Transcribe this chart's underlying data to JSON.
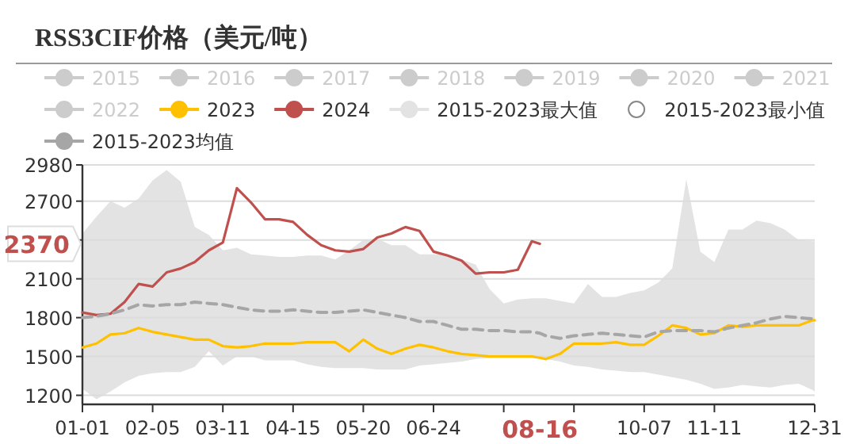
{
  "chart_data": {
    "type": "line",
    "title": "RSS3CIF价格（美元/吨）",
    "x": [
      "--01-01",
      "--01-08",
      "--01-15",
      "--01-22",
      "--01-29",
      "--02-05",
      "--02-12",
      "--02-19",
      "--02-26",
      "--03-04",
      "--03-11",
      "--03-18",
      "--03-25",
      "--04-01",
      "--04-08",
      "--04-15",
      "--04-22",
      "--04-29",
      "--05-06",
      "--05-13",
      "--05-20",
      "--05-27",
      "--06-03",
      "--06-10",
      "--06-17",
      "--06-24",
      "--07-01",
      "--07-08",
      "--07-15",
      "--07-22",
      "--07-29",
      "--08-05",
      "--08-12",
      "--08-16",
      "--08-19",
      "--08-26",
      "--09-02",
      "--09-09",
      "--09-16",
      "--09-23",
      "--09-30",
      "--10-07",
      "--10-14",
      "--10-21",
      "--10-28",
      "--11-04",
      "--11-11",
      "--11-18",
      "--11-25",
      "--12-02",
      "--12-09",
      "--12-16",
      "--12-23",
      "--12-30",
      "--12-31"
    ],
    "series": [
      {
        "name": "2015",
        "color": "#cccccc",
        "values": [
          null,
          null,
          null,
          null,
          null,
          null,
          null,
          null,
          null,
          null,
          null,
          null,
          null,
          null,
          null,
          null,
          null,
          null,
          null,
          null,
          null,
          null,
          null,
          null,
          null,
          null,
          null,
          null,
          null,
          null,
          null,
          null,
          null,
          null,
          null,
          null,
          null,
          null,
          null,
          null,
          null,
          null,
          null,
          null,
          null,
          null,
          null,
          null,
          null,
          null,
          null,
          null,
          null,
          null,
          null
        ]
      },
      {
        "name": "2016",
        "color": "#cccccc",
        "values": [
          null,
          null,
          null,
          null,
          null,
          null,
          null,
          null,
          null,
          null,
          null,
          null,
          null,
          null,
          null,
          null,
          null,
          null,
          null,
          null,
          null,
          null,
          null,
          null,
          null,
          null,
          null,
          null,
          null,
          null,
          null,
          null,
          null,
          null,
          null,
          null,
          null,
          null,
          null,
          null,
          null,
          null,
          null,
          null,
          null,
          null,
          null,
          null,
          null,
          null,
          null,
          null,
          null,
          null,
          null
        ]
      },
      {
        "name": "2017",
        "color": "#cccccc",
        "values": [
          null,
          null,
          null,
          null,
          null,
          null,
          null,
          null,
          null,
          null,
          null,
          null,
          null,
          null,
          null,
          null,
          null,
          null,
          null,
          null,
          null,
          null,
          null,
          null,
          null,
          null,
          null,
          null,
          null,
          null,
          null,
          null,
          null,
          null,
          null,
          null,
          null,
          null,
          null,
          null,
          null,
          null,
          null,
          null,
          null,
          null,
          null,
          null,
          null,
          null,
          null,
          null,
          null,
          null,
          null
        ]
      },
      {
        "name": "2018",
        "color": "#cccccc",
        "values": [
          null,
          null,
          null,
          null,
          null,
          null,
          null,
          null,
          null,
          null,
          null,
          null,
          null,
          null,
          null,
          null,
          null,
          null,
          null,
          null,
          null,
          null,
          null,
          null,
          null,
          null,
          null,
          null,
          null,
          null,
          null,
          null,
          null,
          null,
          null,
          null,
          null,
          null,
          null,
          null,
          null,
          null,
          null,
          null,
          null,
          null,
          null,
          null,
          null,
          null,
          null,
          null,
          null,
          null,
          null
        ]
      },
      {
        "name": "2019",
        "color": "#cccccc",
        "values": [
          null,
          null,
          null,
          null,
          null,
          null,
          null,
          null,
          null,
          null,
          null,
          null,
          null,
          null,
          null,
          null,
          null,
          null,
          null,
          null,
          null,
          null,
          null,
          null,
          null,
          null,
          null,
          null,
          null,
          null,
          null,
          null,
          null,
          null,
          null,
          null,
          null,
          null,
          null,
          null,
          null,
          null,
          null,
          null,
          null,
          null,
          null,
          null,
          null,
          null,
          null,
          null,
          null,
          null,
          null
        ]
      },
      {
        "name": "2020",
        "color": "#cccccc",
        "values": [
          null,
          null,
          null,
          null,
          null,
          null,
          null,
          null,
          null,
          null,
          null,
          null,
          null,
          null,
          null,
          null,
          null,
          null,
          null,
          null,
          null,
          null,
          null,
          null,
          null,
          null,
          null,
          null,
          null,
          null,
          null,
          null,
          null,
          null,
          null,
          null,
          null,
          null,
          null,
          null,
          null,
          null,
          null,
          null,
          null,
          null,
          null,
          null,
          null,
          null,
          null,
          null,
          null,
          null,
          null
        ]
      },
      {
        "name": "2021",
        "color": "#cccccc",
        "values": [
          null,
          null,
          null,
          null,
          null,
          null,
          null,
          null,
          null,
          null,
          null,
          null,
          null,
          null,
          null,
          null,
          null,
          null,
          null,
          null,
          null,
          null,
          null,
          null,
          null,
          null,
          null,
          null,
          null,
          null,
          null,
          null,
          null,
          null,
          null,
          null,
          null,
          null,
          null,
          null,
          null,
          null,
          null,
          null,
          null,
          null,
          null,
          null,
          null,
          null,
          null,
          null,
          null,
          null,
          null
        ]
      },
      {
        "name": "2022",
        "color": "#cccccc",
        "values": [
          null,
          null,
          null,
          null,
          null,
          null,
          null,
          null,
          null,
          null,
          null,
          null,
          null,
          null,
          null,
          null,
          null,
          null,
          null,
          null,
          null,
          null,
          null,
          null,
          null,
          null,
          null,
          null,
          null,
          null,
          null,
          null,
          null,
          null,
          null,
          null,
          null,
          null,
          null,
          null,
          null,
          null,
          null,
          null,
          null,
          null,
          null,
          null,
          null,
          null,
          null,
          null,
          null,
          null,
          null
        ]
      },
      {
        "name": "2023",
        "color": "#ffc000",
        "values": [
          1570,
          1600,
          1670,
          1680,
          1720,
          1690,
          1670,
          1650,
          1630,
          1630,
          1580,
          1570,
          1580,
          1600,
          1600,
          1600,
          1610,
          1610,
          1610,
          1540,
          1630,
          1560,
          1520,
          1560,
          1590,
          1570,
          1540,
          1520,
          1510,
          1500,
          1500,
          1500,
          1500,
          1490,
          1480,
          1520,
          1600,
          1600,
          1600,
          1610,
          1590,
          1590,
          1660,
          1740,
          1720,
          1670,
          1680,
          1740,
          1730,
          1740,
          1740,
          1740,
          1740,
          1780,
          1780
        ]
      },
      {
        "name": "2024",
        "color": "#c0504d",
        "values": [
          1840,
          1820,
          1830,
          1920,
          2060,
          2040,
          2150,
          2180,
          2230,
          2320,
          2380,
          2800,
          2690,
          2560,
          2560,
          2540,
          2440,
          2360,
          2320,
          2310,
          2330,
          2420,
          2450,
          2500,
          2470,
          2310,
          2280,
          2240,
          2140,
          2150,
          2150,
          2170,
          2390,
          2370,
          null,
          null,
          null,
          null,
          null,
          null,
          null,
          null,
          null,
          null,
          null,
          null,
          null,
          null,
          null,
          null,
          null,
          null,
          null,
          null,
          null
        ]
      },
      {
        "name": "2015-2023最大值",
        "type": "area",
        "color": "#e3e3e3",
        "values": [
          2450,
          2580,
          2700,
          2650,
          2720,
          2860,
          2940,
          2850,
          2500,
          2440,
          2320,
          2340,
          2290,
          2280,
          2270,
          2270,
          2280,
          2280,
          2250,
          2320,
          2400,
          2410,
          2360,
          2360,
          2290,
          2290,
          2290,
          2250,
          2210,
          2020,
          1910,
          1940,
          1950,
          1950,
          1950,
          1930,
          1910,
          2060,
          1960,
          1960,
          1990,
          2010,
          2070,
          2180,
          2870,
          2310,
          2230,
          2480,
          2480,
          2550,
          2530,
          2480,
          2400,
          2390,
          2390
        ]
      },
      {
        "name": "2015-2023最小值",
        "type": "area",
        "color": "#ffffff",
        "values": [
          1250,
          1170,
          1230,
          1300,
          1350,
          1370,
          1380,
          1380,
          1420,
          1540,
          1430,
          1500,
          1500,
          1470,
          1470,
          1470,
          1440,
          1420,
          1410,
          1410,
          1410,
          1400,
          1400,
          1400,
          1430,
          1440,
          1450,
          1460,
          1480,
          1490,
          1500,
          1510,
          1500,
          1490,
          1480,
          1460,
          1430,
          1420,
          1400,
          1390,
          1380,
          1380,
          1360,
          1340,
          1320,
          1290,
          1250,
          1260,
          1280,
          1270,
          1260,
          1280,
          1290,
          1240,
          1230
        ]
      },
      {
        "name": "2015-2023均值",
        "color": "#a6a6a6",
        "line_style": "dashed",
        "values": [
          1800,
          1810,
          1830,
          1860,
          1900,
          1890,
          1900,
          1900,
          1920,
          1910,
          1900,
          1880,
          1860,
          1850,
          1850,
          1860,
          1850,
          1840,
          1840,
          1850,
          1860,
          1840,
          1820,
          1800,
          1770,
          1770,
          1740,
          1710,
          1710,
          1700,
          1700,
          1690,
          1690,
          1680,
          1660,
          1640,
          1660,
          1670,
          1680,
          1670,
          1660,
          1650,
          1690,
          1700,
          1700,
          1700,
          1690,
          1720,
          1740,
          1760,
          1790,
          1810,
          1800,
          1790,
          1790
        ]
      }
    ],
    "xlim": [
      "--01-01",
      "--12-31"
    ],
    "xticks": [
      {
        "value": "--01-01",
        "label": "01-01"
      },
      {
        "value": "--02-05",
        "label": "02-05"
      },
      {
        "value": "--03-11",
        "label": "03-11"
      },
      {
        "value": "--04-15",
        "label": "04-15"
      },
      {
        "value": "--05-20",
        "label": "05-20"
      },
      {
        "value": "--06-24",
        "label": "06-24"
      },
      {
        "value": "--07-29",
        "label": null
      },
      {
        "value": "--09-02",
        "label": null
      },
      {
        "value": "--10-07",
        "label": "10-07"
      },
      {
        "value": "--11-11",
        "label": "11-11"
      },
      {
        "value": "--12-31",
        "label": "12-31"
      }
    ],
    "ylim": [
      1130,
      2980
    ],
    "yticks": [
      1200,
      1500,
      1800,
      2100,
      {
        "value": 2400,
        "label": null
      },
      2700,
      2980
    ],
    "annotations": [
      "2370",
      "08-16"
    ],
    "grid": "y",
    "legend": "top"
  }
}
